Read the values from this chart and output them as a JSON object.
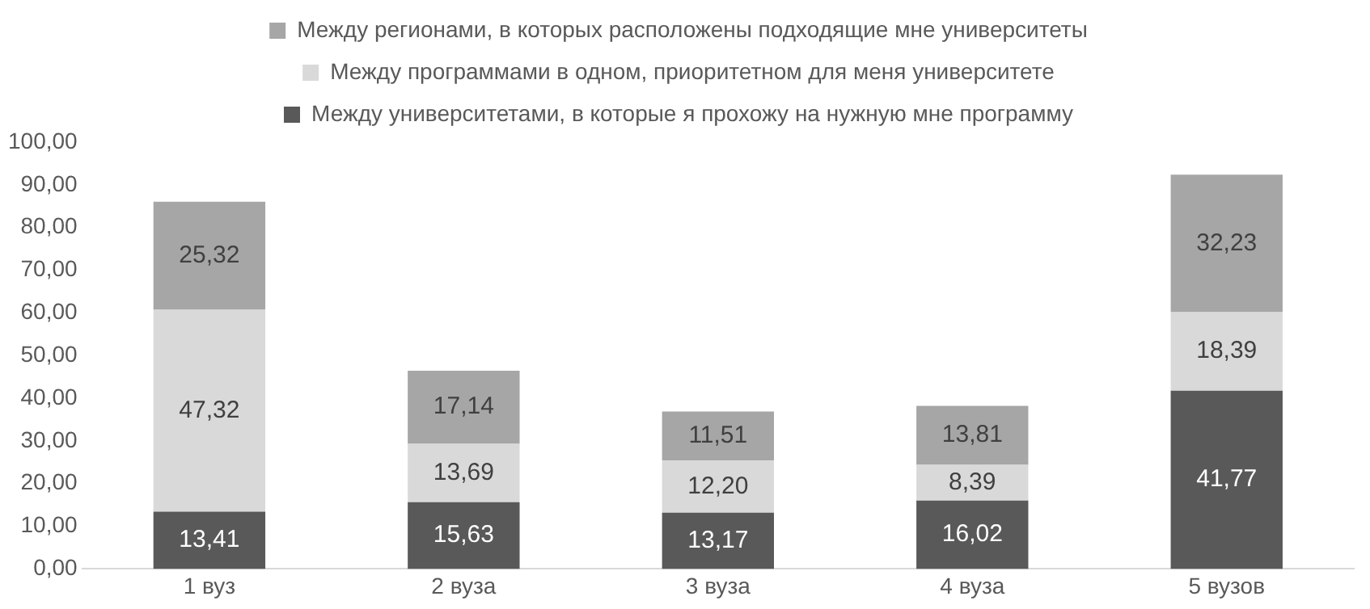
{
  "chart_data": {
    "type": "bar",
    "stacked": true,
    "categories": [
      "1 вуз",
      "2 вуза",
      "3 вуза",
      "4 вуза",
      "5 вузов"
    ],
    "series": [
      {
        "name": "Между университетами, в которые я прохожу на нужную мне программу",
        "color": "#595959",
        "values": [
          13.41,
          15.63,
          13.17,
          16.02,
          41.77
        ],
        "value_labels": [
          "13,41",
          "15,63",
          "13,17",
          "16,02",
          "41,77"
        ]
      },
      {
        "name": "Между программами в одном, приоритетном для меня университете",
        "color": "#d9d9d9",
        "values": [
          47.32,
          13.69,
          12.2,
          8.39,
          18.39
        ],
        "value_labels": [
          "47,32",
          "13,69",
          "12,20",
          "8,39",
          "18,39"
        ]
      },
      {
        "name": "Между регионами, в которых расположены подходящие мне университеты",
        "color": "#a6a6a6",
        "values": [
          25.32,
          17.14,
          11.51,
          13.81,
          32.23
        ],
        "value_labels": [
          "25,32",
          "17,14",
          "11,51",
          "13,81",
          "32,23"
        ]
      }
    ],
    "ylim": [
      0,
      100
    ],
    "yticks": [
      {
        "value": 0,
        "label": "0,00"
      },
      {
        "value": 10,
        "label": "10,00"
      },
      {
        "value": 20,
        "label": "20,00"
      },
      {
        "value": 30,
        "label": "30,00"
      },
      {
        "value": 40,
        "label": "40,00"
      },
      {
        "value": 50,
        "label": "50,00"
      },
      {
        "value": 60,
        "label": "60,00"
      },
      {
        "value": 70,
        "label": "70,00"
      },
      {
        "value": 80,
        "label": "80,00"
      },
      {
        "value": 90,
        "label": "90,00"
      },
      {
        "value": 100,
        "label": "100,00"
      }
    ],
    "grid": false,
    "legend": "top"
  }
}
